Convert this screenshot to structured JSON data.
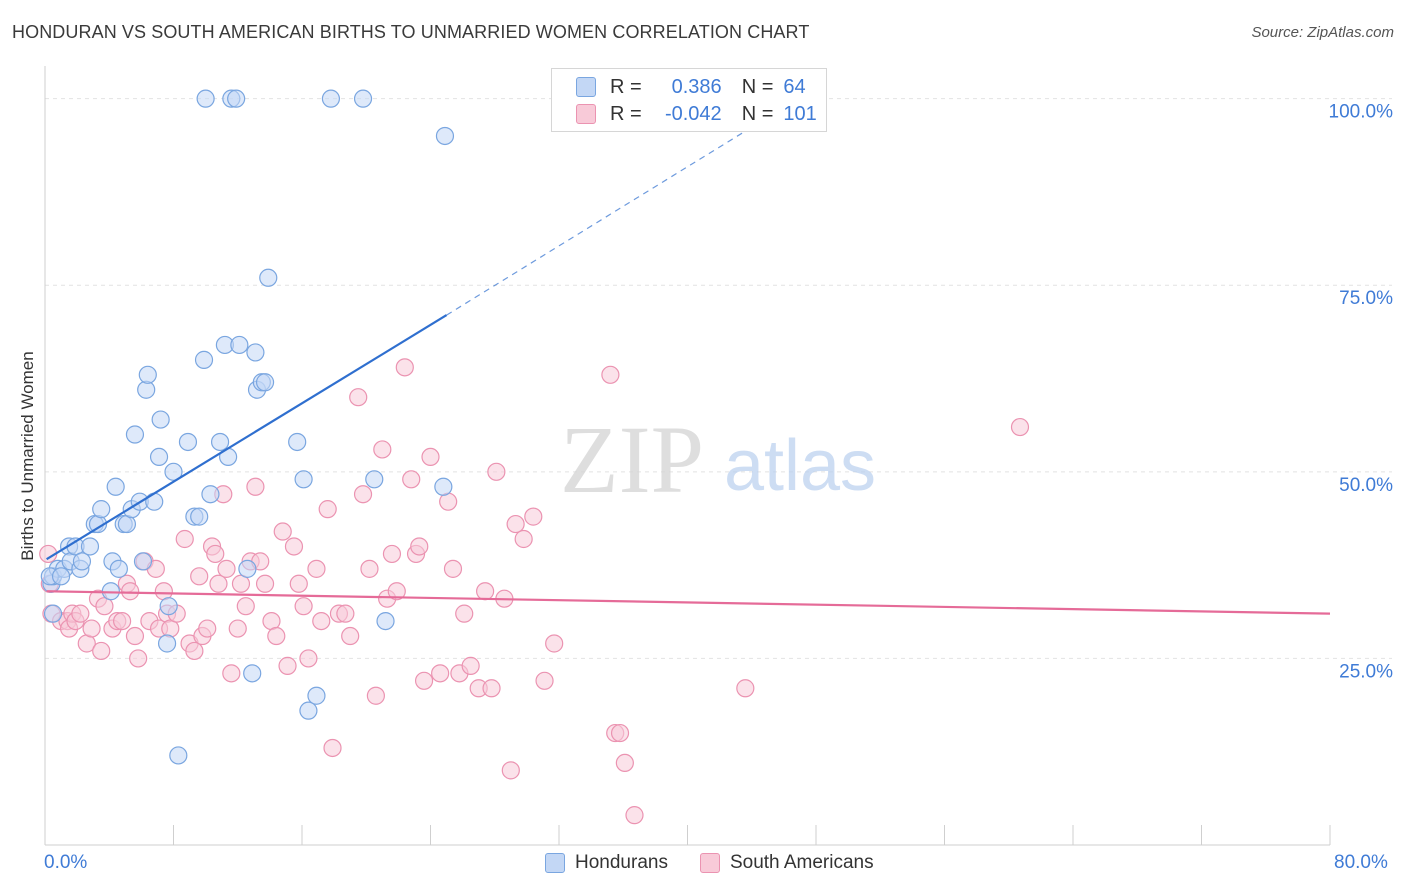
{
  "title": "HONDURAN VS SOUTH AMERICAN BIRTHS TO UNMARRIED WOMEN CORRELATION CHART",
  "source": "Source: ZipAtlas.com",
  "watermark": {
    "zip": "ZIP",
    "atlas": "atlas"
  },
  "legend": {
    "r_label": "R =",
    "n_label": "N =",
    "series": [
      {
        "name": "Hondurans",
        "r": "0.386",
        "n": "64"
      },
      {
        "name": "South Americans",
        "r": "-0.042",
        "n": "101"
      }
    ]
  },
  "colors": {
    "blue_fill": "#c3d7f5",
    "blue_stroke": "#7aa6e0",
    "blue_line": "#2f6fcf",
    "pink_fill": "#f8cad8",
    "pink_stroke": "#eb93b1",
    "pink_line": "#e56b98",
    "tick_text": "#3f7bd6",
    "grid": "#e2e2e2"
  },
  "chart_data": {
    "type": "scatter",
    "title": "HONDURAN VS SOUTH AMERICAN BIRTHS TO UNMARRIED WOMEN CORRELATION CHART",
    "xlabel": "",
    "ylabel": "Births to Unmarried Women",
    "xlim": [
      0,
      80
    ],
    "ylim": [
      0,
      102.5
    ],
    "x_tick_labels": [
      "0.0%",
      "80.0%"
    ],
    "y_ticks": [
      25,
      50,
      75,
      100
    ],
    "y_tick_labels": [
      "25.0%",
      "50.0%",
      "75.0%",
      "100.0%"
    ],
    "legend_position": "top-center",
    "series": [
      {
        "name": "Hondurans",
        "r": 0.386,
        "n": 64,
        "trend": {
          "x": [
            0.1,
            25,
            45
          ],
          "y": [
            38.3,
            71,
            97.5
          ],
          "dashed_from_x": 25
        },
        "points": [
          [
            0.4,
            35
          ],
          [
            0.5,
            36
          ],
          [
            0.5,
            31
          ],
          [
            0.8,
            37
          ],
          [
            1.2,
            37
          ],
          [
            1.5,
            40
          ],
          [
            1.6,
            38
          ],
          [
            1.9,
            40
          ],
          [
            2.2,
            37
          ],
          [
            2.3,
            38
          ],
          [
            2.8,
            40
          ],
          [
            3.1,
            43
          ],
          [
            3.3,
            43
          ],
          [
            3.5,
            45
          ],
          [
            4.1,
            34
          ],
          [
            4.2,
            38
          ],
          [
            4.4,
            48
          ],
          [
            4.6,
            37
          ],
          [
            4.9,
            43
          ],
          [
            5.1,
            43
          ],
          [
            5.4,
            45
          ],
          [
            5.6,
            55
          ],
          [
            5.9,
            46
          ],
          [
            6.1,
            38
          ],
          [
            6.3,
            61
          ],
          [
            6.4,
            63
          ],
          [
            6.8,
            46
          ],
          [
            7.1,
            52
          ],
          [
            7.2,
            57
          ],
          [
            7.6,
            27
          ],
          [
            7.7,
            32
          ],
          [
            8.0,
            50
          ],
          [
            8.9,
            54
          ],
          [
            9.3,
            44
          ],
          [
            9.6,
            44
          ],
          [
            9.9,
            65
          ],
          [
            10.0,
            100
          ],
          [
            10.3,
            47
          ],
          [
            10.9,
            54
          ],
          [
            11.2,
            67
          ],
          [
            11.4,
            52
          ],
          [
            11.6,
            100
          ],
          [
            11.9,
            100
          ],
          [
            12.1,
            67
          ],
          [
            12.6,
            37
          ],
          [
            12.9,
            23
          ],
          [
            13.1,
            66
          ],
          [
            13.2,
            61
          ],
          [
            13.5,
            62
          ],
          [
            13.9,
            76
          ],
          [
            13.7,
            62
          ],
          [
            15.7,
            54
          ],
          [
            16.1,
            49
          ],
          [
            16.4,
            18
          ],
          [
            16.9,
            20
          ],
          [
            17.8,
            100
          ],
          [
            19.8,
            100
          ],
          [
            20.5,
            49
          ],
          [
            21.2,
            30
          ],
          [
            24.8,
            48
          ],
          [
            24.9,
            95
          ],
          [
            8.3,
            12
          ],
          [
            0.3,
            36
          ],
          [
            1.0,
            36
          ]
        ]
      },
      {
        "name": "South Americans",
        "r": -0.042,
        "n": 101,
        "trend": {
          "x": [
            0.1,
            80
          ],
          "y": [
            34,
            31
          ]
        },
        "points": [
          [
            0.2,
            39
          ],
          [
            0.3,
            35
          ],
          [
            0.4,
            31
          ],
          [
            1.0,
            30
          ],
          [
            1.4,
            30
          ],
          [
            1.5,
            29
          ],
          [
            1.7,
            31
          ],
          [
            1.9,
            30
          ],
          [
            2.2,
            31
          ],
          [
            2.6,
            27
          ],
          [
            2.9,
            29
          ],
          [
            3.3,
            33
          ],
          [
            3.5,
            26
          ],
          [
            3.7,
            32
          ],
          [
            4.2,
            29
          ],
          [
            4.5,
            30
          ],
          [
            4.8,
            30
          ],
          [
            5.1,
            35
          ],
          [
            5.3,
            34
          ],
          [
            5.6,
            28
          ],
          [
            5.8,
            25
          ],
          [
            6.2,
            38
          ],
          [
            6.5,
            30
          ],
          [
            6.9,
            37
          ],
          [
            7.1,
            29
          ],
          [
            7.4,
            34
          ],
          [
            7.6,
            31
          ],
          [
            7.8,
            29
          ],
          [
            8.2,
            31
          ],
          [
            8.7,
            41
          ],
          [
            9.0,
            27
          ],
          [
            9.3,
            26
          ],
          [
            9.6,
            36
          ],
          [
            9.8,
            28
          ],
          [
            10.1,
            29
          ],
          [
            10.4,
            40
          ],
          [
            10.6,
            39
          ],
          [
            10.8,
            35
          ],
          [
            11.1,
            47
          ],
          [
            11.3,
            37
          ],
          [
            11.6,
            23
          ],
          [
            12.0,
            29
          ],
          [
            12.2,
            35
          ],
          [
            12.5,
            32
          ],
          [
            12.8,
            38
          ],
          [
            13.1,
            48
          ],
          [
            13.4,
            38
          ],
          [
            13.7,
            35
          ],
          [
            14.1,
            30
          ],
          [
            14.4,
            28
          ],
          [
            14.8,
            42
          ],
          [
            15.1,
            24
          ],
          [
            15.5,
            40
          ],
          [
            15.8,
            35
          ],
          [
            16.1,
            32
          ],
          [
            16.4,
            25
          ],
          [
            16.9,
            37
          ],
          [
            17.2,
            30
          ],
          [
            17.6,
            45
          ],
          [
            17.9,
            13
          ],
          [
            18.3,
            31
          ],
          [
            18.7,
            31
          ],
          [
            19.0,
            28
          ],
          [
            19.5,
            60
          ],
          [
            19.8,
            47
          ],
          [
            20.2,
            37
          ],
          [
            20.6,
            20
          ],
          [
            21.0,
            53
          ],
          [
            21.3,
            33
          ],
          [
            21.6,
            39
          ],
          [
            21.9,
            34
          ],
          [
            22.4,
            64
          ],
          [
            22.8,
            49
          ],
          [
            23.1,
            39
          ],
          [
            23.3,
            40
          ],
          [
            23.6,
            22
          ],
          [
            24.0,
            52
          ],
          [
            24.6,
            23
          ],
          [
            25.1,
            46
          ],
          [
            25.4,
            37
          ],
          [
            25.8,
            23
          ],
          [
            26.1,
            31
          ],
          [
            26.5,
            24
          ],
          [
            27.0,
            21
          ],
          [
            27.4,
            34
          ],
          [
            27.8,
            21
          ],
          [
            28.1,
            50
          ],
          [
            28.6,
            33
          ],
          [
            29.0,
            10
          ],
          [
            29.3,
            43
          ],
          [
            29.8,
            41
          ],
          [
            30.4,
            44
          ],
          [
            31.1,
            22
          ],
          [
            31.7,
            27
          ],
          [
            35.2,
            63
          ],
          [
            35.5,
            15
          ],
          [
            35.8,
            15
          ],
          [
            36.1,
            11
          ],
          [
            36.7,
            4
          ],
          [
            43.6,
            21
          ],
          [
            60.7,
            56
          ]
        ]
      }
    ]
  }
}
